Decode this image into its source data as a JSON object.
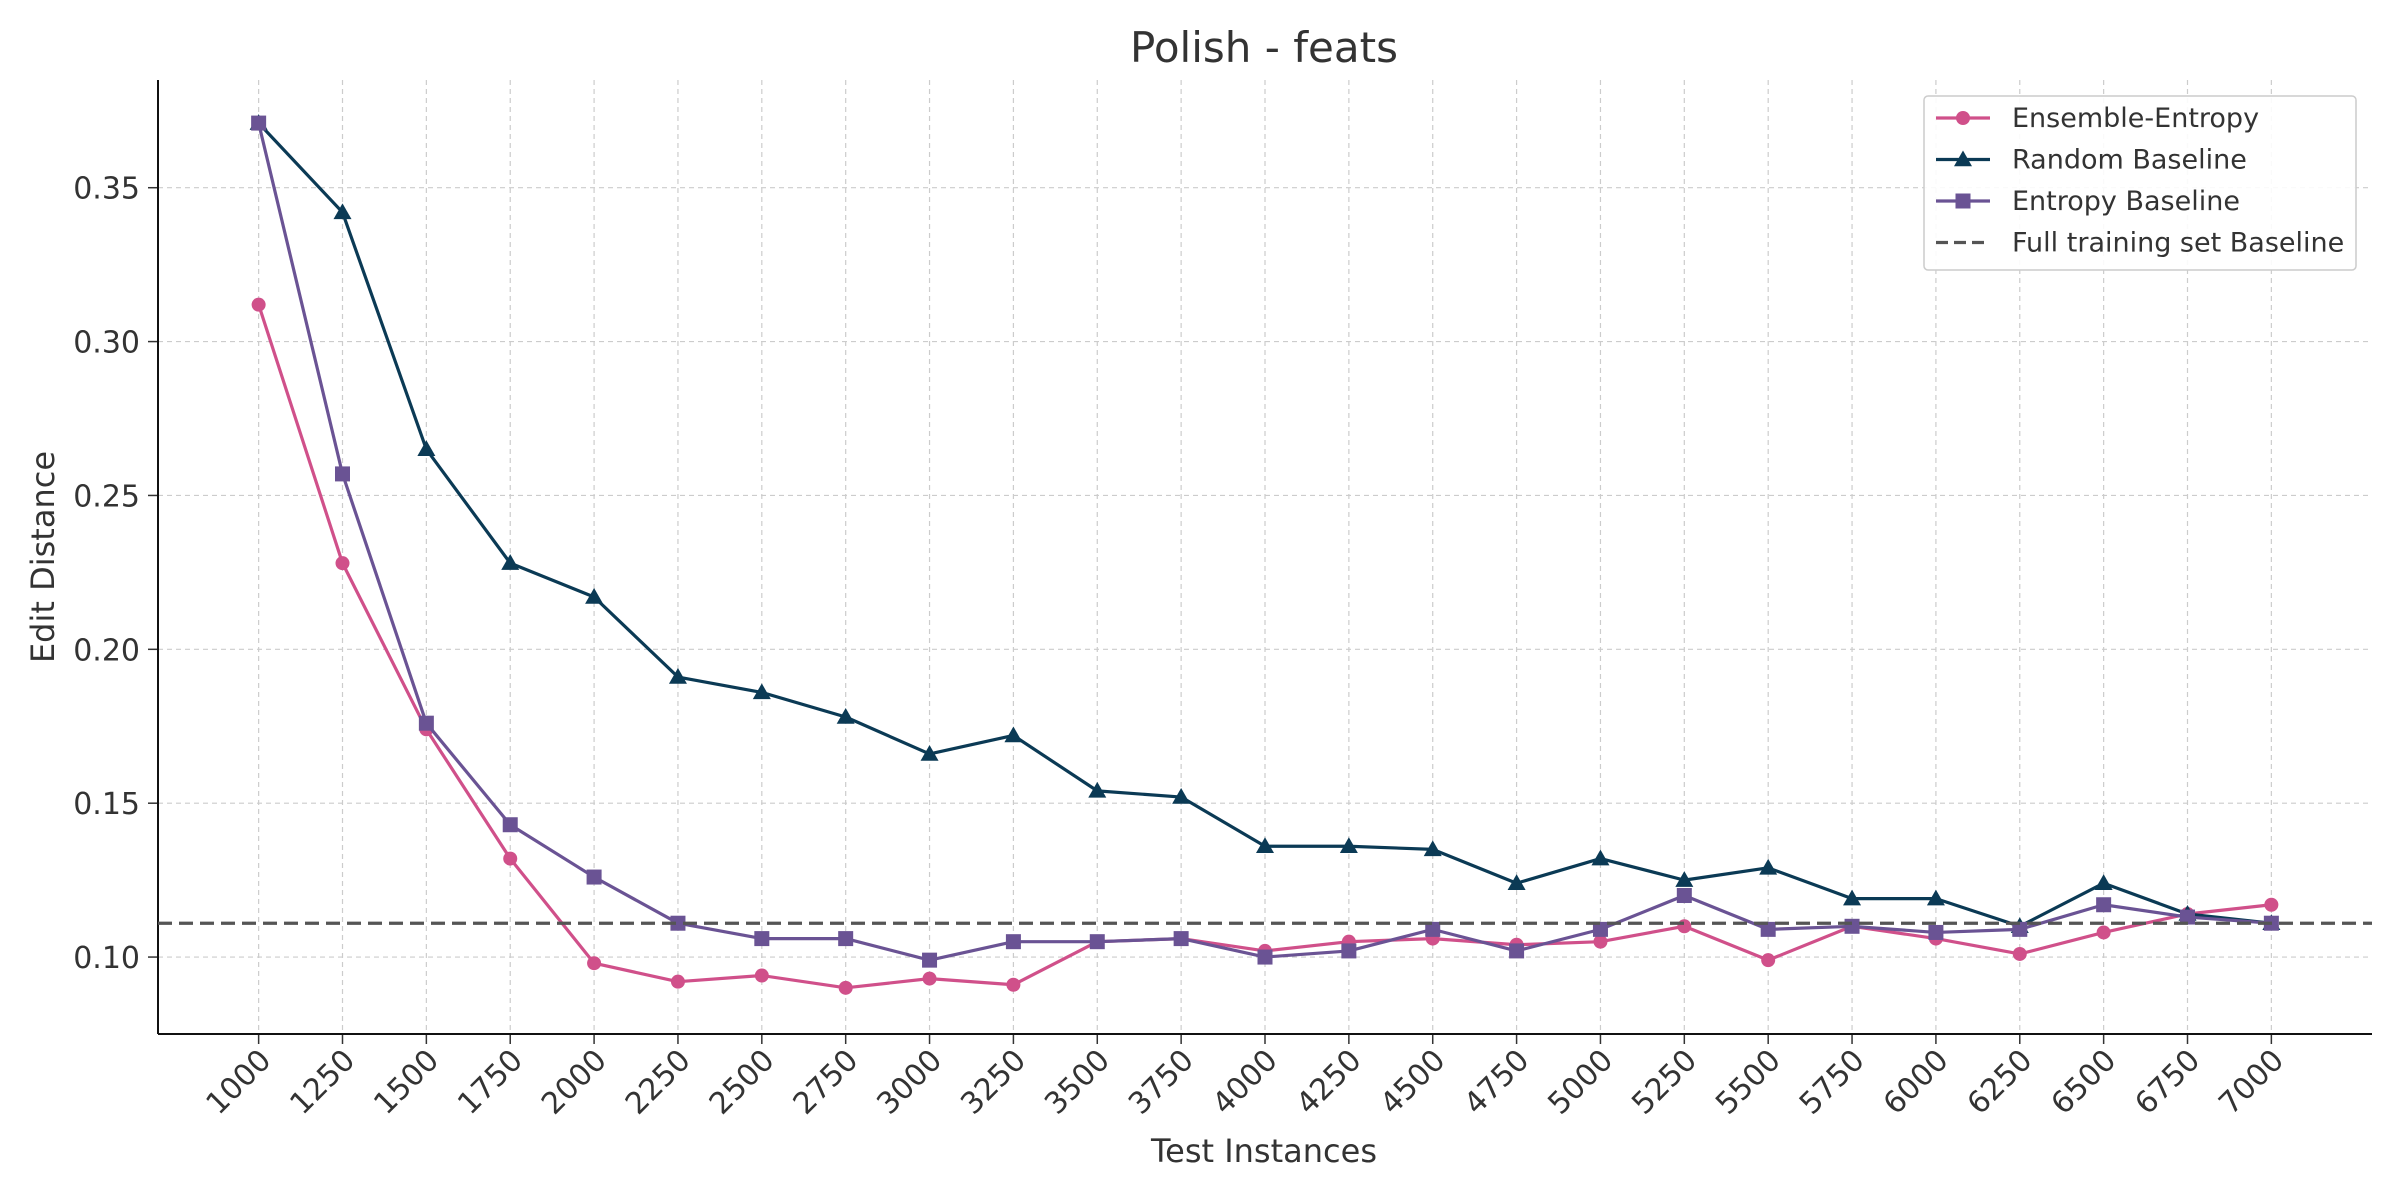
{
  "chart_data": {
    "type": "line",
    "title": "Polish - feats",
    "xlabel": "Test Instances",
    "ylabel": "Edit Distance",
    "x": [
      1000,
      1250,
      1500,
      1750,
      2000,
      2250,
      2500,
      2750,
      3000,
      3250,
      3500,
      3750,
      4000,
      4250,
      4500,
      4750,
      5000,
      5250,
      5500,
      5750,
      6000,
      6250,
      6500,
      6750,
      7000
    ],
    "xticks": [
      "1000",
      "1250",
      "1500",
      "1750",
      "2000",
      "2250",
      "2500",
      "2750",
      "3000",
      "3250",
      "3500",
      "3750",
      "4000",
      "4250",
      "4500",
      "4750",
      "5000",
      "5250",
      "5500",
      "5750",
      "6000",
      "6250",
      "6500",
      "6750",
      "7000"
    ],
    "yticks": [
      "0.10",
      "0.15",
      "0.20",
      "0.25",
      "0.30",
      "0.35"
    ],
    "ytick_values": [
      0.1,
      0.15,
      0.2,
      0.25,
      0.3,
      0.35
    ],
    "xlim": [
      700,
      7300
    ],
    "ylim": [
      0.075,
      0.385
    ],
    "grid": true,
    "legend_position": "top-right",
    "series": [
      {
        "name": "Ensemble-Entropy",
        "color": "#d0508a",
        "marker": "circle",
        "values": [
          0.312,
          0.228,
          0.174,
          0.132,
          0.098,
          0.092,
          0.094,
          0.09,
          0.093,
          0.091,
          0.105,
          0.106,
          0.102,
          0.105,
          0.106,
          0.104,
          0.105,
          0.11,
          0.099,
          0.11,
          0.106,
          0.101,
          0.108,
          0.114,
          0.117
        ]
      },
      {
        "name": "Random Baseline",
        "color": "#0b3a55",
        "marker": "triangle",
        "values": [
          0.371,
          0.342,
          0.265,
          0.228,
          0.217,
          0.191,
          0.186,
          0.178,
          0.166,
          0.172,
          0.154,
          0.152,
          0.136,
          0.136,
          0.135,
          0.124,
          0.132,
          0.125,
          0.129,
          0.119,
          0.119,
          0.11,
          0.124,
          0.114,
          0.111
        ]
      },
      {
        "name": "Entropy Baseline",
        "color": "#6a5394",
        "marker": "square",
        "values": [
          0.371,
          0.257,
          0.176,
          0.143,
          0.126,
          0.111,
          0.106,
          0.106,
          0.099,
          0.105,
          0.105,
          0.106,
          0.1,
          0.102,
          0.109,
          0.102,
          0.109,
          0.12,
          0.109,
          0.11,
          0.108,
          0.109,
          0.117,
          0.113,
          0.111
        ]
      },
      {
        "name": "Full training set Baseline",
        "color": "#555555",
        "marker": "none",
        "dashed": true,
        "value": 0.111
      }
    ]
  }
}
